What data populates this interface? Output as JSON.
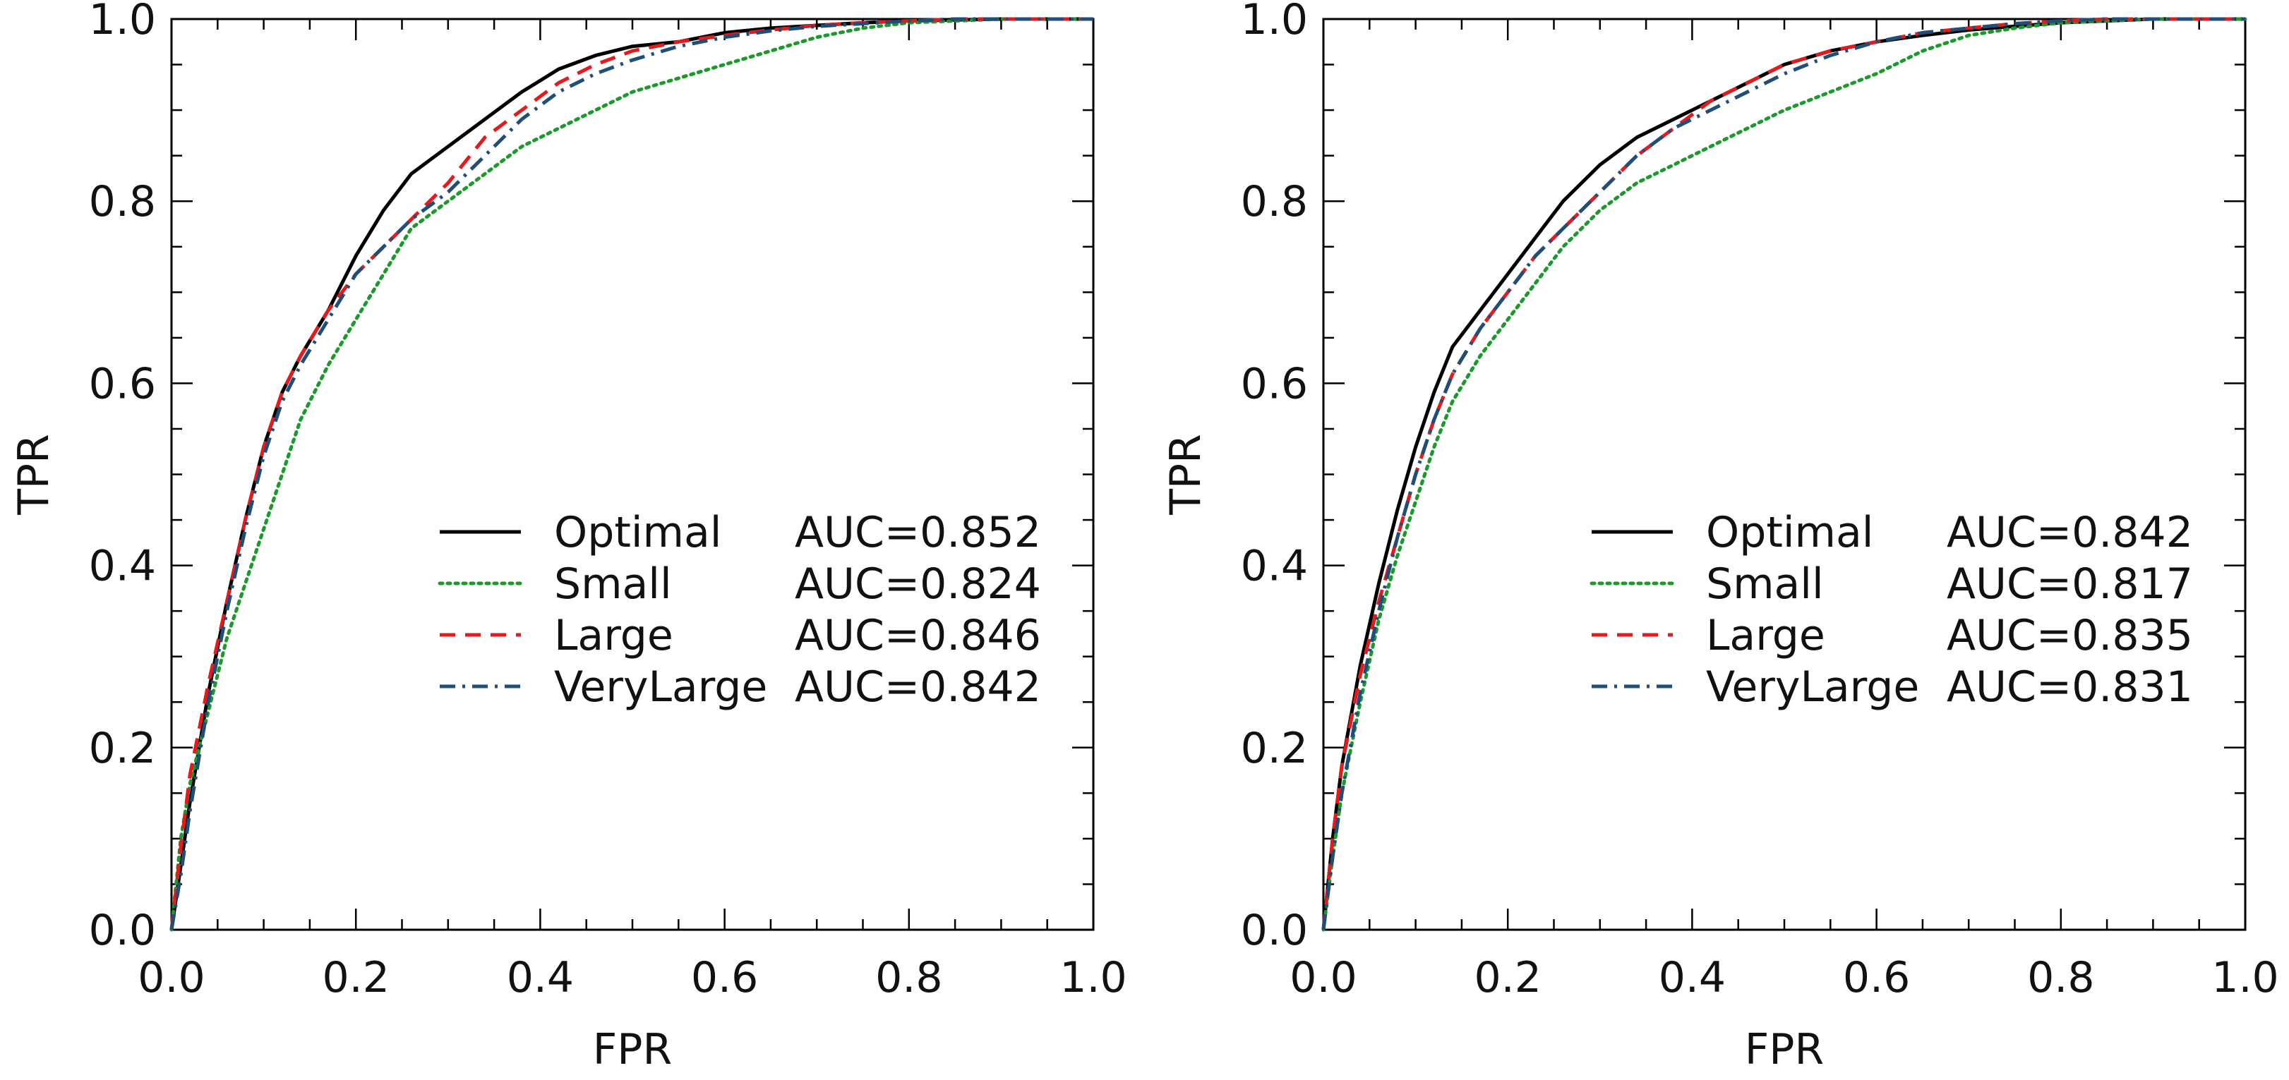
{
  "chart_data": [
    {
      "type": "line",
      "panel": "left",
      "title": "",
      "xlabel": "FPR",
      "ylabel": "TPR",
      "xlim": [
        0,
        1
      ],
      "ylim": [
        0,
        1
      ],
      "xticks": [
        "0.0",
        "0.2",
        "0.4",
        "0.6",
        "0.8",
        "1.0"
      ],
      "yticks": [
        "0.0",
        "0.2",
        "0.4",
        "0.6",
        "0.8",
        "1.0"
      ],
      "legend_position": "center-right",
      "series": [
        {
          "name": "Optimal",
          "auc_label": "AUC=0.852",
          "color": "#000000",
          "dash": "solid",
          "x": [
            0,
            0.01,
            0.02,
            0.04,
            0.06,
            0.08,
            0.1,
            0.12,
            0.14,
            0.17,
            0.2,
            0.23,
            0.26,
            0.3,
            0.34,
            0.38,
            0.42,
            0.46,
            0.5,
            0.55,
            0.6,
            0.65,
            0.7,
            0.75,
            0.8,
            0.85,
            0.9,
            0.95,
            1.0
          ],
          "y": [
            0,
            0.07,
            0.14,
            0.26,
            0.36,
            0.45,
            0.53,
            0.59,
            0.63,
            0.68,
            0.74,
            0.79,
            0.83,
            0.86,
            0.89,
            0.92,
            0.945,
            0.96,
            0.97,
            0.975,
            0.985,
            0.99,
            0.993,
            0.996,
            0.998,
            0.999,
            1.0,
            1.0,
            1.0
          ]
        },
        {
          "name": "Small",
          "auc_label": "AUC=0.824",
          "color": "#1a9a2a",
          "dash": "dotted",
          "x": [
            0,
            0.01,
            0.02,
            0.04,
            0.06,
            0.08,
            0.1,
            0.12,
            0.14,
            0.17,
            0.2,
            0.23,
            0.26,
            0.3,
            0.34,
            0.38,
            0.42,
            0.46,
            0.5,
            0.55,
            0.6,
            0.65,
            0.7,
            0.75,
            0.8,
            0.85,
            0.9,
            0.95,
            1.0
          ],
          "y": [
            0,
            0.1,
            0.16,
            0.24,
            0.32,
            0.38,
            0.44,
            0.5,
            0.56,
            0.62,
            0.67,
            0.72,
            0.77,
            0.8,
            0.83,
            0.86,
            0.88,
            0.9,
            0.92,
            0.935,
            0.95,
            0.965,
            0.98,
            0.99,
            0.996,
            0.998,
            1.0,
            1.0,
            1.0
          ]
        },
        {
          "name": "Large",
          "auc_label": "AUC=0.846",
          "color": "#e41a1c",
          "dash": "dashed",
          "x": [
            0,
            0.01,
            0.02,
            0.04,
            0.06,
            0.08,
            0.1,
            0.12,
            0.14,
            0.17,
            0.2,
            0.23,
            0.26,
            0.3,
            0.34,
            0.38,
            0.42,
            0.46,
            0.5,
            0.55,
            0.6,
            0.65,
            0.7,
            0.75,
            0.8,
            0.85,
            0.9,
            0.95,
            1.0
          ],
          "y": [
            0,
            0.09,
            0.17,
            0.27,
            0.36,
            0.45,
            0.53,
            0.59,
            0.63,
            0.68,
            0.72,
            0.75,
            0.78,
            0.82,
            0.87,
            0.9,
            0.93,
            0.95,
            0.965,
            0.975,
            0.982,
            0.988,
            0.993,
            0.996,
            0.998,
            1.0,
            1.0,
            1.0,
            1.0
          ]
        },
        {
          "name": "VeryLarge",
          "auc_label": "AUC=0.842",
          "color": "#1f4e79",
          "dash": "dashdot",
          "x": [
            0,
            0.01,
            0.02,
            0.04,
            0.06,
            0.08,
            0.1,
            0.12,
            0.14,
            0.17,
            0.2,
            0.23,
            0.26,
            0.3,
            0.34,
            0.38,
            0.42,
            0.46,
            0.5,
            0.55,
            0.6,
            0.65,
            0.7,
            0.75,
            0.8,
            0.85,
            0.9,
            0.95,
            1.0
          ],
          "y": [
            0,
            0.06,
            0.13,
            0.25,
            0.35,
            0.44,
            0.52,
            0.58,
            0.62,
            0.67,
            0.72,
            0.75,
            0.78,
            0.81,
            0.85,
            0.89,
            0.92,
            0.94,
            0.955,
            0.97,
            0.98,
            0.987,
            0.992,
            0.995,
            0.998,
            1.0,
            1.0,
            1.0,
            1.0
          ]
        }
      ]
    },
    {
      "type": "line",
      "panel": "right",
      "title": "",
      "xlabel": "FPR",
      "ylabel": "TPR",
      "xlim": [
        0,
        1
      ],
      "ylim": [
        0,
        1
      ],
      "xticks": [
        "0.0",
        "0.2",
        "0.4",
        "0.6",
        "0.8",
        "1.0"
      ],
      "yticks": [
        "0.0",
        "0.2",
        "0.4",
        "0.6",
        "0.8",
        "1.0"
      ],
      "legend_position": "center-right",
      "series": [
        {
          "name": "Optimal",
          "auc_label": "AUC=0.842",
          "color": "#000000",
          "dash": "solid",
          "x": [
            0,
            0.01,
            0.02,
            0.04,
            0.06,
            0.08,
            0.1,
            0.12,
            0.14,
            0.17,
            0.2,
            0.23,
            0.26,
            0.3,
            0.34,
            0.38,
            0.42,
            0.46,
            0.5,
            0.55,
            0.6,
            0.65,
            0.7,
            0.75,
            0.8,
            0.85,
            0.9,
            0.95,
            1.0
          ],
          "y": [
            0,
            0.1,
            0.18,
            0.29,
            0.38,
            0.46,
            0.53,
            0.59,
            0.64,
            0.68,
            0.72,
            0.76,
            0.8,
            0.84,
            0.87,
            0.89,
            0.91,
            0.93,
            0.95,
            0.965,
            0.975,
            0.982,
            0.988,
            0.992,
            0.996,
            0.998,
            1.0,
            1.0,
            1.0
          ]
        },
        {
          "name": "Small",
          "auc_label": "AUC=0.817",
          "color": "#1a9a2a",
          "dash": "dotted",
          "x": [
            0,
            0.01,
            0.02,
            0.04,
            0.06,
            0.08,
            0.1,
            0.12,
            0.14,
            0.17,
            0.2,
            0.23,
            0.26,
            0.3,
            0.34,
            0.38,
            0.42,
            0.46,
            0.5,
            0.55,
            0.6,
            0.65,
            0.7,
            0.75,
            0.8,
            0.85,
            0.9,
            0.95,
            1.0
          ],
          "y": [
            0,
            0.08,
            0.15,
            0.25,
            0.34,
            0.41,
            0.47,
            0.53,
            0.58,
            0.63,
            0.67,
            0.71,
            0.75,
            0.79,
            0.82,
            0.84,
            0.86,
            0.88,
            0.9,
            0.92,
            0.94,
            0.965,
            0.982,
            0.99,
            0.996,
            0.998,
            1.0,
            1.0,
            1.0
          ]
        },
        {
          "name": "Large",
          "auc_label": "AUC=0.835",
          "color": "#e41a1c",
          "dash": "dashed",
          "x": [
            0,
            0.01,
            0.02,
            0.04,
            0.06,
            0.08,
            0.1,
            0.12,
            0.14,
            0.17,
            0.2,
            0.23,
            0.26,
            0.3,
            0.34,
            0.38,
            0.42,
            0.46,
            0.5,
            0.55,
            0.6,
            0.65,
            0.7,
            0.75,
            0.8,
            0.85,
            0.9,
            0.95,
            1.0
          ],
          "y": [
            0,
            0.1,
            0.18,
            0.28,
            0.36,
            0.43,
            0.5,
            0.56,
            0.61,
            0.66,
            0.7,
            0.74,
            0.77,
            0.81,
            0.85,
            0.88,
            0.91,
            0.93,
            0.95,
            0.965,
            0.975,
            0.985,
            0.99,
            0.995,
            0.998,
            1.0,
            1.0,
            1.0,
            1.0
          ]
        },
        {
          "name": "VeryLarge",
          "auc_label": "AUC=0.831",
          "color": "#1f4e79",
          "dash": "dashdot",
          "x": [
            0,
            0.01,
            0.02,
            0.04,
            0.06,
            0.08,
            0.1,
            0.12,
            0.14,
            0.17,
            0.2,
            0.23,
            0.26,
            0.3,
            0.34,
            0.38,
            0.42,
            0.46,
            0.5,
            0.55,
            0.6,
            0.65,
            0.7,
            0.75,
            0.8,
            0.85,
            0.9,
            0.95,
            1.0
          ],
          "y": [
            0,
            0.08,
            0.15,
            0.26,
            0.35,
            0.43,
            0.5,
            0.56,
            0.61,
            0.66,
            0.7,
            0.74,
            0.77,
            0.81,
            0.85,
            0.88,
            0.9,
            0.92,
            0.94,
            0.96,
            0.975,
            0.985,
            0.99,
            0.995,
            0.998,
            1.0,
            1.0,
            1.0,
            1.0
          ]
        }
      ]
    }
  ]
}
